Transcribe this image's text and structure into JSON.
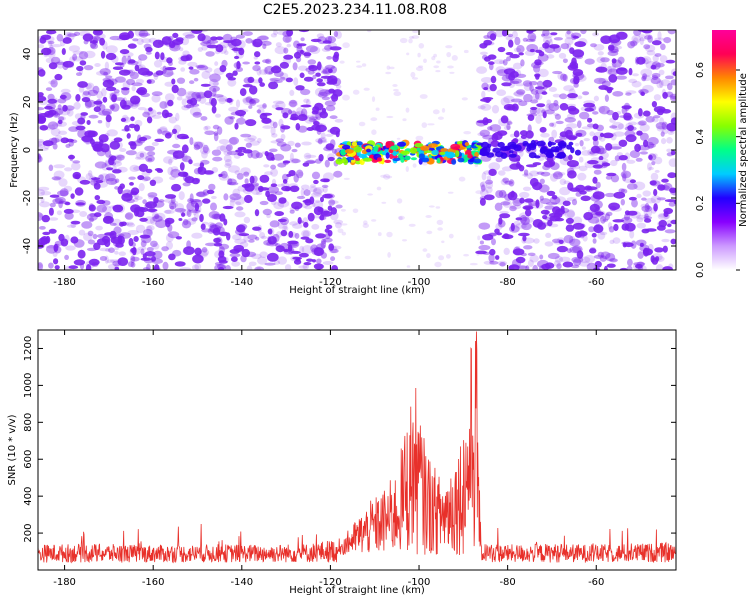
{
  "title": "C2E5.2023.234.11.08.R08",
  "chart_data": [
    {
      "type": "heatmap",
      "xlabel": "Height of straight line (km)",
      "ylabel": "Frequency (Hz)",
      "xlim": [
        -186,
        -42
      ],
      "ylim": [
        -50,
        50
      ],
      "x_ticks": [
        -180,
        -160,
        -140,
        -120,
        -100,
        -80,
        -60
      ],
      "y_ticks": [
        -40,
        -20,
        0,
        20,
        40
      ],
      "description_regions": {
        "noise_left_x": [
          -186,
          -118
        ],
        "gap_x": [
          -118,
          -86
        ],
        "noise_right_x": [
          -86,
          -42
        ],
        "signal_band_x": [
          -118,
          -86
        ],
        "signal_band_freq": [
          -5,
          3
        ]
      },
      "colorbar": {
        "label": "Normalized spectral amplitude",
        "range": [
          0.0,
          0.72
        ],
        "ticks": [
          0.0,
          0.2,
          0.4,
          0.6
        ],
        "colors": [
          "#ffffff",
          "#cc99ff",
          "#8800ff",
          "#2200ff",
          "#00ccff",
          "#00ff88",
          "#88ff00",
          "#ffff00",
          "#ff8800",
          "#ff0055",
          "#ff0099"
        ]
      },
      "noise_color": "#7b22ee"
    },
    {
      "type": "line",
      "xlabel": "Height of straight line (km)",
      "ylabel": "SNR (10 * v/v)",
      "xlim": [
        -186,
        -42
      ],
      "ylim": [
        0,
        1300
      ],
      "x_ticks": [
        -180,
        -160,
        -140,
        -120,
        -100,
        -80,
        -60
      ],
      "y_ticks": [
        200,
        400,
        600,
        800,
        1000,
        1200
      ],
      "series": [
        {
          "name": "SNR",
          "color": "#e8302a",
          "x": [
            -186,
            -175,
            -165,
            -155,
            -145,
            -135,
            -125,
            -118,
            -114,
            -111,
            -108,
            -105,
            -103,
            -101,
            -99,
            -97,
            -95,
            -93,
            -91,
            -89,
            -88,
            -87,
            -86,
            -85,
            -80,
            -70,
            -60,
            -50,
            -42
          ],
          "y": [
            120,
            125,
            120,
            118,
            122,
            120,
            125,
            150,
            270,
            360,
            420,
            520,
            760,
            990,
            700,
            560,
            480,
            560,
            660,
            900,
            1280,
            1300,
            110,
            130,
            120,
            125,
            120,
            125,
            130
          ]
        }
      ]
    }
  ]
}
